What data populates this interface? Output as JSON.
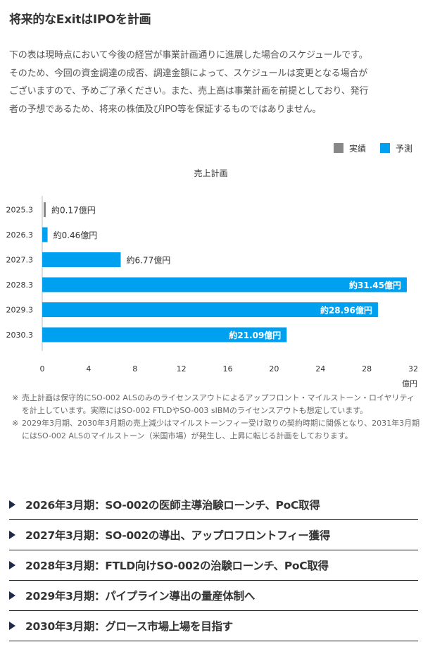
{
  "header": {
    "title": "将来的なExitはIPOを計画"
  },
  "intro": {
    "lines": [
      "下の表は現時点において今後の経営が事業計画通りに進展した場合のスケジュールです。",
      "そのため、今回の資金調達の成否、調達金額によって、スケジュールは変更となる場合が",
      "ございますので、予めご了承ください。また、売上高は事業計画を前提としており、発行",
      "者の予想であるため、将来の株価及びIPO等を保証するものではありません。"
    ]
  },
  "colors": {
    "actual": "#888888",
    "forecast": "#00a0f0",
    "axis": "#bbbbbb",
    "arrow": "#1d2a4b"
  },
  "chart_data": {
    "type": "bar",
    "orientation": "horizontal",
    "title": "売上計画",
    "xlabel": "億円",
    "xlim": [
      0,
      32
    ],
    "xticks": [
      0,
      4,
      8,
      12,
      16,
      20,
      24,
      28,
      32
    ],
    "grid": false,
    "legend": {
      "position": "top-right",
      "entries": [
        {
          "label": "実績",
          "color": "#888888"
        },
        {
          "label": "予測",
          "color": "#00a0f0"
        }
      ]
    },
    "categories": [
      "2025.3",
      "2026.3",
      "2027.3",
      "2028.3",
      "2029.3",
      "2030.3"
    ],
    "values": [
      0.17,
      0.46,
      6.77,
      31.45,
      28.96,
      21.09
    ],
    "kind": [
      "実績",
      "予測",
      "予測",
      "予測",
      "予測",
      "予測"
    ],
    "labels": [
      "約0.17億円",
      "約0.46億円",
      "約6.77億円",
      "約31.45億円",
      "約28.96億円",
      "約21.09億円"
    ]
  },
  "notes": [
    {
      "mark": "※",
      "text": "売上計画は保守的にSO-002 ALSのみのライセンスアウトによるアップフロント・マイルストーン・ロイヤリティを計上しています。実際にはSO-002 FTLDやSO-003 sIBMのライセンスアウトも想定しています。"
    },
    {
      "mark": "※",
      "text": "2029年3月期、2030年3月期の売上減少はマイルストーンフィー受け取りの契約時期に関係となり、2031年3月期にはSO-002 ALSのマイルストーン（米国市場）が発生し、上昇に転じる計画をしております。"
    }
  ],
  "milestones": [
    "2026年3月期：SO-002の医師主導治験ローンチ、PoC取得",
    "2027年3月期：SO-002の導出、アップロフロントフィー獲得",
    "2028年3月期：FTLD向けSO-002の治験ローンチ、PoC取得",
    "2029年3月期：パイプライン導出の量産体制へ",
    "2030年3月期：グロース市場上場を目指す"
  ]
}
